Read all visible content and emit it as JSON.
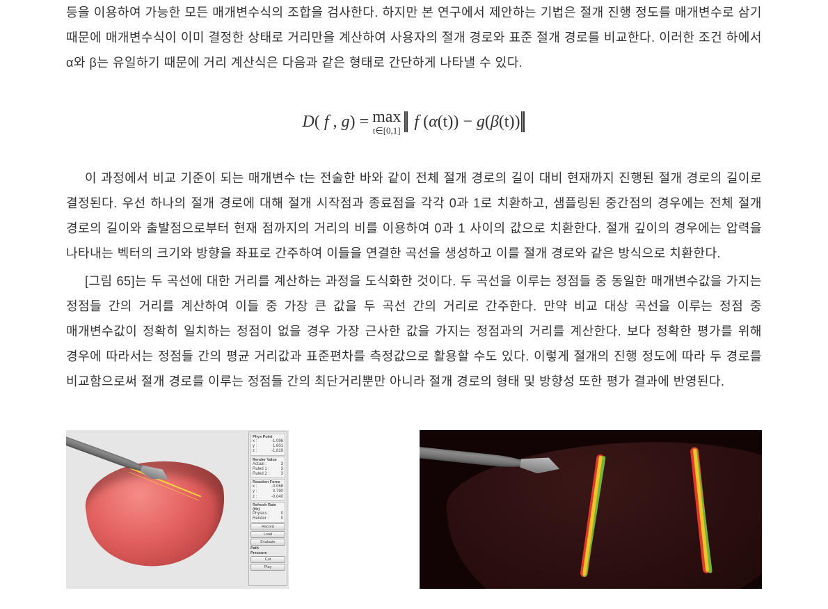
{
  "text_color": "#333333",
  "background_color": "#ffffff",
  "body_fontsize": 18,
  "body_lineheight": 2.0,
  "para1": "등을 이용하여 가능한 모든 매개변수식의 조합을 검사한다. 하지만 본 연구에서 제안하는 기법은 절개 진행 정도를 매개변수로 삼기 때문에 매개변수식이 이미 결정한 상태로 거리만을 계산하여 사용자의 절개 경로와 표준 절개 경로를 비교한다. 이러한 조건 하에서 α와 β는 유일하기 때문에 거리 계산식은 다음과 같은 형태로 간단하게 나타낼 수 있다.",
  "formula": {
    "left": "D( f , g) =",
    "max": "max",
    "max_sub": "t∈[0,1]",
    "body": "f (α(t)) − g(β(t))"
  },
  "para2": "이 과정에서 비교 기준이 되는 매개변수 t는 전술한 바와 같이 전체 절개 경로의 길이 대비 현재까지 진행된 절개 경로의 길이로 결정된다. 우선 하나의 절개 경로에 대해 절개 시작점과 종료점을 각각 0과 1로 치환하고, 샘플링된 중간점의 경우에는 전체 절개 경로의 길이와 출발점으로부터 현재 점까지의 거리의 비를 이용하여 0과 1 사이의 값으로 치환한다. 절개 깊이의 경우에는 압력을 나타내는 벡터의 크기와 방향을 좌표로 간주하여 이들을 연결한 곡선을 생성하고 이를 절개 경로와 같은 방식으로 치환한다.",
  "para3": "[그림 65]는 두 곡선에 대한 거리를 계산하는 과정을 도식화한 것이다. 두 곡선을 이루는 정점들 중 동일한 매개변수값을 가지는 정점들 간의 거리를 계산하여 이들 중 가장 큰 값을 두 곡선 간의 거리로 간주한다. 만약 비교 대상 곡선을 이루는 정점 중 매개변수값이 정확히 일치하는 정점이 없을 경우 가장 근사한 값을 가지는 정점과의 거리를 계산한다. 보다 정확한 평가를 위해 경우에 따라서는 정점들 간의 평균 거리값과 표준편차를 측정값으로 활용할 수도 있다. 이렇게 절개의 진행 정도에 따라 두 경로를 비교함으로써 절개 경로를 이루는 정점들 간의 최단거리뿐만 아니라 절개 경로의 형태 및 방향성 또한 평가 결과에 반영된다.",
  "panel": {
    "section_phyx": "Phyx Point",
    "phyx_x_label": "x :",
    "phyx_x": "-1.096",
    "phyx_y_label": "y :",
    "phyx_y": "1.601",
    "phyx_z_label": "z :",
    "phyx_z": "-1.819",
    "section_render": "Render Value",
    "render_a_label": "Actual :",
    "render_a": "3",
    "render_1_label": "Ruled 1 :",
    "render_1": "3",
    "render_2_label": "Ruled 2 :",
    "render_2": "3",
    "section_force": "Reaction Force",
    "force_x_label": "x :",
    "force_x": "-0.068",
    "force_y_label": "y :",
    "force_y": "0.790",
    "force_z_label": "z :",
    "force_z": "-0.040",
    "refresh_label": "Refresh Rate (Hz)",
    "hz_physics": "Physics :",
    "hz_physics_v": "0",
    "hz_render": "Render :",
    "hz_render_v": "0",
    "btn_record": "Record",
    "btn_load": "Load",
    "btn_evaluate": "Evaluate",
    "section_path": "Path",
    "section_pressure": "Pressure",
    "btn_cut": "Cut",
    "btn_play": "Play"
  },
  "figures": {
    "left_bg": "#e6e6e6",
    "right_bg": "#120404",
    "organ_colors": {
      "left": "#e2605e",
      "right": "#2a0e0e"
    },
    "stroke_colors": {
      "red": "#e03a2d",
      "green": "#74b436",
      "yellow": "#f2c22a"
    },
    "scalpel_color": "#7a7a7a"
  }
}
